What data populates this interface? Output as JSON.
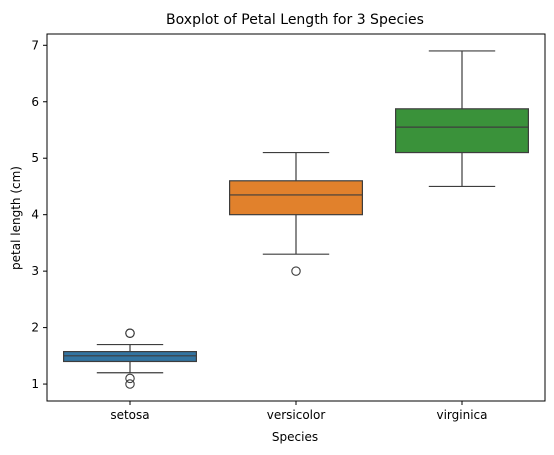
{
  "chart_data": {
    "type": "box",
    "title": "Boxplot of Petal Length for 3 Species",
    "xlabel": "Species",
    "ylabel": "petal length (cm)",
    "categories": [
      "setosa",
      "versicolor",
      "virginica"
    ],
    "ylim": [
      0.7,
      7.2
    ],
    "yticks": [
      1,
      2,
      3,
      4,
      5,
      6,
      7
    ],
    "grid": false,
    "colors": [
      "#3274a1",
      "#e1812c",
      "#3a923a"
    ],
    "boxes": [
      {
        "category": "setosa",
        "whisker_low": 1.2,
        "q1": 1.4,
        "median": 1.5,
        "q3": 1.575,
        "whisker_high": 1.7,
        "outliers": [
          1.0,
          1.1,
          1.9,
          1.9
        ]
      },
      {
        "category": "versicolor",
        "whisker_low": 3.3,
        "q1": 4.0,
        "median": 4.35,
        "q3": 4.6,
        "whisker_high": 5.1,
        "outliers": [
          3.0
        ]
      },
      {
        "category": "virginica",
        "whisker_low": 4.5,
        "q1": 5.1,
        "median": 5.55,
        "q3": 5.875,
        "whisker_high": 6.9,
        "outliers": []
      }
    ]
  }
}
